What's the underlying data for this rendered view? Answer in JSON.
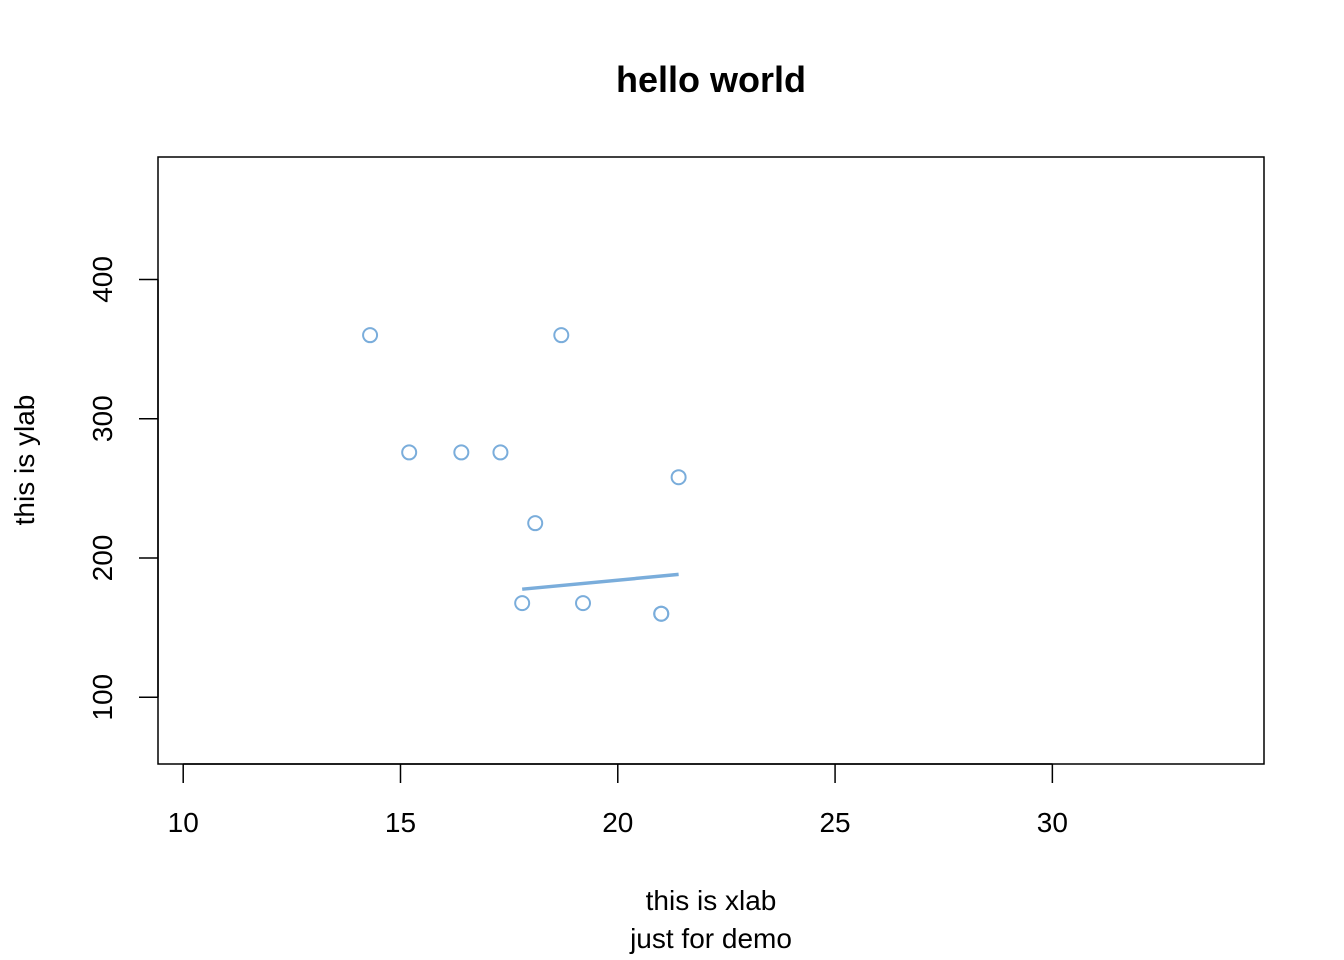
{
  "chart_data": {
    "type": "scatter",
    "title": "hello world",
    "xlabel": "this is xlab",
    "xlabel_sub": "just for demo",
    "ylabel": "this is ylab",
    "xlim": [
      9.42,
      34.87
    ],
    "ylim": [
      52.08,
      487.92
    ],
    "x_ticks": [
      10,
      15,
      20,
      25,
      30
    ],
    "y_ticks": [
      100,
      200,
      300,
      400
    ],
    "grid": false,
    "legend": "none",
    "series": [
      {
        "color": "#7AADDB",
        "points": [
          [
            21.0,
            160
          ],
          [
            21.0,
            160
          ],
          [
            21.4,
            258
          ],
          [
            18.7,
            360
          ],
          [
            18.1,
            225
          ],
          [
            14.3,
            360
          ],
          [
            19.2,
            167.6
          ],
          [
            17.8,
            167.6
          ],
          [
            16.4,
            275.8
          ],
          [
            17.3,
            275.8
          ],
          [
            15.2,
            275.8
          ]
        ],
        "fit": [
          [
            17.8,
            177.6
          ],
          [
            21.4,
            188.2
          ]
        ]
      }
    ]
  }
}
